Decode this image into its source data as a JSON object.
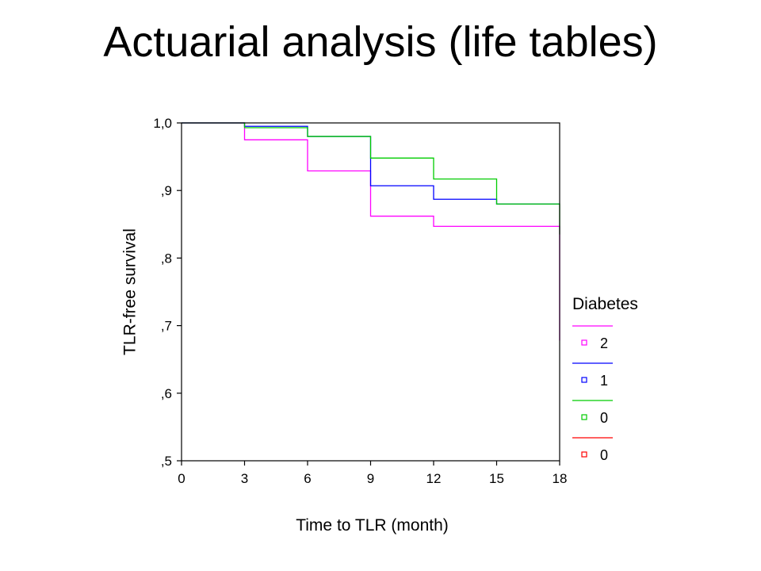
{
  "slide": {
    "title": "Actuarial analysis (life tables)"
  },
  "chart_data": {
    "type": "line",
    "step": true,
    "title": "",
    "xlabel": "Time to TLR (month)",
    "ylabel": "TLR-free survival",
    "xlim": [
      0,
      18
    ],
    "ylim": [
      0.5,
      1.0
    ],
    "xticks": [
      0,
      3,
      6,
      9,
      12,
      15,
      18
    ],
    "xtick_labels": [
      "0",
      "3",
      "6",
      "9",
      "12",
      "15",
      "18"
    ],
    "yticks": [
      0.5,
      0.6,
      0.7,
      0.8,
      0.9,
      1.0
    ],
    "ytick_labels": [
      ",5",
      ",6",
      ",7",
      ",8",
      ",9",
      "1,0"
    ],
    "grid": false,
    "legend": {
      "title": "Diabetes",
      "placement": "right"
    },
    "series": [
      {
        "name": "2",
        "color": "#ff00ff",
        "x": [
          0,
          3,
          6,
          9,
          12,
          15,
          18,
          18
        ],
        "y": [
          1.0,
          0.975,
          0.929,
          0.862,
          0.847,
          0.847,
          0.847,
          0.678
        ]
      },
      {
        "name": "1",
        "color": "#0000ff",
        "x": [
          0,
          3,
          6,
          9,
          12,
          15,
          18
        ],
        "y": [
          1.0,
          0.995,
          0.98,
          0.907,
          0.887,
          0.88,
          0.88
        ]
      },
      {
        "name": "0",
        "color": "#00cc00",
        "x": [
          0,
          3,
          6,
          9,
          12,
          15,
          18,
          18
        ],
        "y": [
          1.0,
          0.993,
          0.98,
          0.948,
          0.917,
          0.88,
          0.88,
          0.835
        ]
      },
      {
        "name": "0",
        "color": "#ff0000",
        "x": [],
        "y": []
      }
    ]
  }
}
